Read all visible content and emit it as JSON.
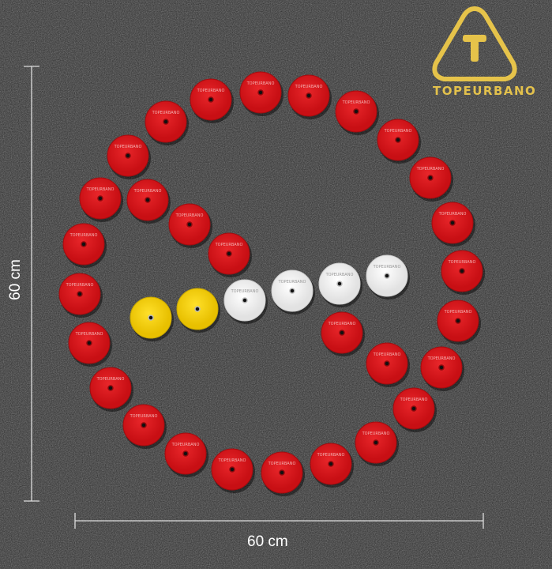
{
  "brand": {
    "name": "TOPEURBANO",
    "color": "#e6c34a"
  },
  "dimensions": {
    "height_label": "60 cm",
    "width_label": "60 cm"
  },
  "disc_label": "TOPEURBANO",
  "colors": {
    "red": "#d8161b",
    "yellow": "#f2cf10",
    "white": "#f4f4f4",
    "ground": "#2b2b2b"
  }
}
